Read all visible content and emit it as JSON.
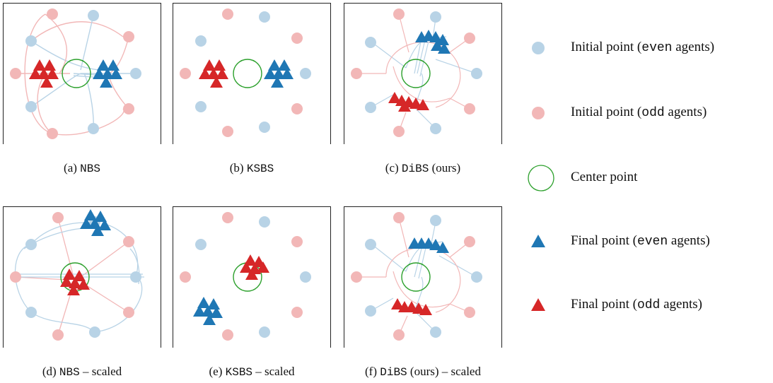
{
  "colors": {
    "even": "#1f77b4",
    "even_light": "#b8d3e6",
    "odd": "#d62728",
    "odd_light": "#f2b7b7",
    "center": "#2ca02c"
  },
  "panels": [
    {
      "prefix": "(a) ",
      "method": "NBS",
      "suffix": ""
    },
    {
      "prefix": "(b) ",
      "method": "KSBS",
      "suffix": ""
    },
    {
      "prefix": "(c) ",
      "method": "DiBS",
      "suffix": " (ours)"
    },
    {
      "prefix": "(d) ",
      "method": "NBS",
      "suffix": " – scaled"
    },
    {
      "prefix": "(e) ",
      "method": "KSBS",
      "suffix": " – scaled"
    },
    {
      "prefix": "(f) ",
      "method": "DiBS",
      "suffix": " (ours) – scaled"
    }
  ],
  "legend": [
    {
      "icon": "circle-even",
      "pre": "Initial point (",
      "mono": "even",
      "post": " agents)"
    },
    {
      "icon": "circle-odd",
      "pre": "Initial point (",
      "mono": "odd",
      "post": " agents)"
    },
    {
      "icon": "ring-center",
      "pre": "Center point",
      "mono": "",
      "post": ""
    },
    {
      "icon": "triangle-even",
      "pre": "Final point (",
      "mono": "even",
      "post": " agents)"
    },
    {
      "icon": "triangle-odd",
      "pre": "Final point (",
      "mono": "odd",
      "post": " agents)"
    }
  ]
}
